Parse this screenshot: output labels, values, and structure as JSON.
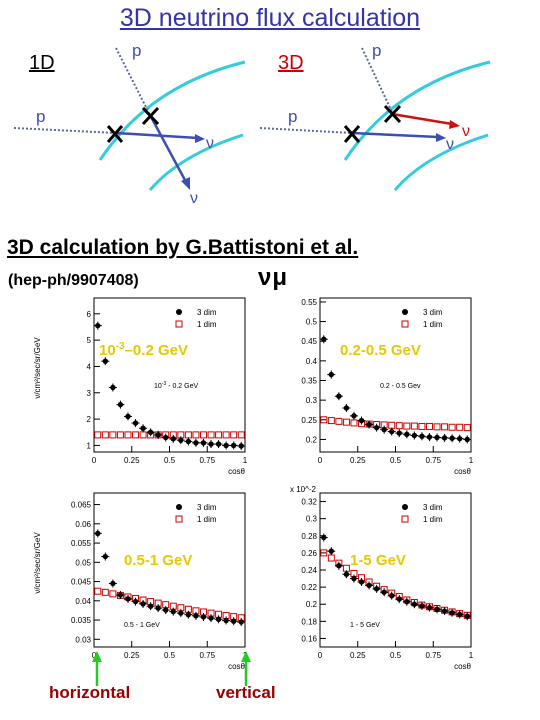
{
  "title": "3D neutrino flux calculation",
  "sketch": {
    "left_label": "1D",
    "right_label": "3D",
    "proton": "p",
    "neutrino": "ν",
    "colors": {
      "earth": "#33ccdd",
      "neutrino_track": "#3a4fb0",
      "proton_track": "#5a6a99",
      "deflected": "#cc1111"
    }
  },
  "reference": {
    "title": "3D calculation by G.Battistoni et al.",
    "arxiv": "(hep-ph/9907408)",
    "flavor": "νμ"
  },
  "annotations": {
    "horizontal": "horizontal",
    "vertical": "vertical",
    "arrow_color": "#22cc22"
  },
  "chart_data": [
    {
      "type": "scatter",
      "energy_band": "10-3–0.2 GeV",
      "inset_label": "10^-3 - 0.2 GeV",
      "ylabel": "ν/cm²/sec/sr/GeV",
      "xlabel": "cosθ",
      "xlim": [
        0,
        1
      ],
      "ylim": [
        0.75,
        6.6
      ],
      "yticks": [
        1,
        2,
        3,
        4,
        5,
        6
      ],
      "xticks": [
        0,
        0.25,
        0.5,
        0.75,
        1
      ],
      "ytick_labels": [
        "1",
        "2",
        "3",
        "4",
        "5",
        "6"
      ],
      "xtick_labels": [
        "0",
        "0.25",
        "0.5",
        "0.75",
        "1"
      ],
      "series": [
        {
          "name": "3 dim",
          "marker": "filled-circle",
          "x": [
            0.025,
            0.075,
            0.125,
            0.175,
            0.225,
            0.275,
            0.325,
            0.375,
            0.425,
            0.475,
            0.525,
            0.575,
            0.625,
            0.675,
            0.725,
            0.775,
            0.825,
            0.875,
            0.925,
            0.975
          ],
          "y": [
            5.55,
            4.2,
            3.2,
            2.55,
            2.1,
            1.85,
            1.65,
            1.5,
            1.4,
            1.3,
            1.25,
            1.2,
            1.15,
            1.1,
            1.1,
            1.05,
            1.05,
            1.0,
            1.0,
            0.98
          ]
        },
        {
          "name": "1 dim",
          "marker": "open-square",
          "x": [
            0.025,
            0.075,
            0.125,
            0.175,
            0.225,
            0.275,
            0.325,
            0.375,
            0.425,
            0.475,
            0.525,
            0.575,
            0.625,
            0.675,
            0.725,
            0.775,
            0.825,
            0.875,
            0.925,
            0.975
          ],
          "y": [
            1.4,
            1.4,
            1.4,
            1.4,
            1.4,
            1.4,
            1.4,
            1.4,
            1.4,
            1.4,
            1.4,
            1.4,
            1.4,
            1.4,
            1.4,
            1.4,
            1.4,
            1.4,
            1.4,
            1.4
          ]
        }
      ]
    },
    {
      "type": "scatter",
      "energy_band": "0.2-0.5 GeV",
      "inset_label": "0.2 - 0.5 Gev",
      "ylabel": "",
      "xlabel": "cosθ",
      "xlim": [
        0,
        1
      ],
      "ylim": [
        0.168,
        0.56
      ],
      "yticks": [
        0.2,
        0.25,
        0.3,
        0.35,
        0.4,
        0.45,
        0.5,
        0.55
      ],
      "xticks": [
        0,
        0.25,
        0.5,
        0.75,
        1
      ],
      "ytick_labels": [
        "0.2",
        "0.25",
        "0.3",
        "0.35",
        "0.4",
        "0.45",
        "0.5",
        "0.55"
      ],
      "xtick_labels": [
        "0",
        "0.25",
        "0.5",
        "0.75",
        "1"
      ],
      "series": [
        {
          "name": "3 dim",
          "marker": "filled-circle",
          "x": [
            0.025,
            0.075,
            0.125,
            0.175,
            0.225,
            0.275,
            0.325,
            0.375,
            0.425,
            0.475,
            0.525,
            0.575,
            0.625,
            0.675,
            0.725,
            0.775,
            0.825,
            0.875,
            0.925,
            0.975
          ],
          "y": [
            0.455,
            0.365,
            0.31,
            0.28,
            0.26,
            0.248,
            0.238,
            0.23,
            0.225,
            0.22,
            0.216,
            0.213,
            0.21,
            0.208,
            0.206,
            0.205,
            0.204,
            0.203,
            0.202,
            0.2
          ]
        },
        {
          "name": "1 dim",
          "marker": "open-square",
          "x": [
            0.025,
            0.075,
            0.125,
            0.175,
            0.225,
            0.275,
            0.325,
            0.375,
            0.425,
            0.475,
            0.525,
            0.575,
            0.625,
            0.675,
            0.725,
            0.775,
            0.825,
            0.875,
            0.925,
            0.975
          ],
          "y": [
            0.25,
            0.248,
            0.246,
            0.244,
            0.242,
            0.24,
            0.239,
            0.238,
            0.237,
            0.236,
            0.235,
            0.234,
            0.234,
            0.233,
            0.233,
            0.232,
            0.232,
            0.231,
            0.231,
            0.23
          ]
        }
      ]
    },
    {
      "type": "scatter",
      "energy_band": "0.5-1 GeV",
      "inset_label": "0.5 - 1 GeV",
      "ylabel": "ν/cm²/sec/sr/GeV",
      "xlabel": "cosθ",
      "xlim": [
        0,
        1
      ],
      "ylim": [
        0.028,
        0.068
      ],
      "yticks": [
        0.03,
        0.035,
        0.04,
        0.045,
        0.05,
        0.055,
        0.06,
        0.065
      ],
      "xticks": [
        0,
        0.25,
        0.5,
        0.75,
        1
      ],
      "ytick_labels": [
        "0.03",
        "0.035",
        "0.04",
        "0.045",
        "0.05",
        "0.055",
        "0.06",
        "0.065"
      ],
      "xtick_labels": [
        "0",
        "0.25",
        "0.5",
        "0.75",
        "1"
      ],
      "series": [
        {
          "name": "3 dim",
          "marker": "filled-circle",
          "x": [
            0.025,
            0.075,
            0.125,
            0.175,
            0.225,
            0.275,
            0.325,
            0.375,
            0.425,
            0.475,
            0.525,
            0.575,
            0.625,
            0.675,
            0.725,
            0.775,
            0.825,
            0.875,
            0.925,
            0.975
          ],
          "y": [
            0.0575,
            0.0515,
            0.0445,
            0.0415,
            0.0405,
            0.0398,
            0.0392,
            0.0386,
            0.0381,
            0.0376,
            0.0372,
            0.0368,
            0.0364,
            0.0361,
            0.0358,
            0.0355,
            0.0352,
            0.0349,
            0.0347,
            0.0345
          ]
        },
        {
          "name": "1 dim",
          "marker": "open-square",
          "x": [
            0.025,
            0.075,
            0.125,
            0.175,
            0.225,
            0.275,
            0.325,
            0.375,
            0.425,
            0.475,
            0.525,
            0.575,
            0.625,
            0.675,
            0.725,
            0.775,
            0.825,
            0.875,
            0.925,
            0.975
          ],
          "y": [
            0.0425,
            0.0422,
            0.0418,
            0.0414,
            0.041,
            0.0406,
            0.0402,
            0.0398,
            0.0394,
            0.039,
            0.0386,
            0.0382,
            0.0378,
            0.0374,
            0.0371,
            0.0368,
            0.0365,
            0.0362,
            0.0359,
            0.0356
          ]
        }
      ]
    },
    {
      "type": "scatter",
      "energy_band": "1-5 GeV",
      "inset_label": "1 - 5 GeV",
      "ylabel": "",
      "xlabel": "cosθ",
      "axis_multiplier": "x 10^-2",
      "xlim": [
        0,
        1
      ],
      "ylim": [
        0.15,
        0.33
      ],
      "yticks": [
        0.16,
        0.18,
        0.2,
        0.22,
        0.24,
        0.26,
        0.28,
        0.3,
        0.32
      ],
      "xticks": [
        0,
        0.25,
        0.5,
        0.75,
        1
      ],
      "ytick_labels": [
        "0.16",
        "0.18",
        "0.2",
        "0.22",
        "0.24",
        "0.26",
        "0.28",
        "0.3",
        "0.32"
      ],
      "xtick_labels": [
        "0",
        "0.25",
        "0.5",
        "0.75",
        "1"
      ],
      "series": [
        {
          "name": "3 dim",
          "marker": "filled-circle",
          "x": [
            0.025,
            0.075,
            0.125,
            0.175,
            0.225,
            0.275,
            0.325,
            0.375,
            0.425,
            0.475,
            0.525,
            0.575,
            0.625,
            0.675,
            0.725,
            0.775,
            0.825,
            0.875,
            0.925,
            0.975
          ],
          "y": [
            0.278,
            0.262,
            0.245,
            0.235,
            0.23,
            0.226,
            0.222,
            0.218,
            0.214,
            0.21,
            0.206,
            0.203,
            0.2,
            0.198,
            0.196,
            0.194,
            0.192,
            0.19,
            0.188,
            0.186
          ]
        },
        {
          "name": "1 dim",
          "marker": "open-square",
          "x": [
            0.025,
            0.075,
            0.125,
            0.175,
            0.225,
            0.275,
            0.325,
            0.375,
            0.425,
            0.475,
            0.525,
            0.575,
            0.625,
            0.675,
            0.725,
            0.775,
            0.825,
            0.875,
            0.925,
            0.975
          ],
          "y": [
            0.26,
            0.254,
            0.248,
            0.242,
            0.236,
            0.231,
            0.226,
            0.221,
            0.217,
            0.213,
            0.209,
            0.205,
            0.202,
            0.199,
            0.197,
            0.195,
            0.193,
            0.191,
            0.189,
            0.187
          ]
        }
      ]
    }
  ]
}
